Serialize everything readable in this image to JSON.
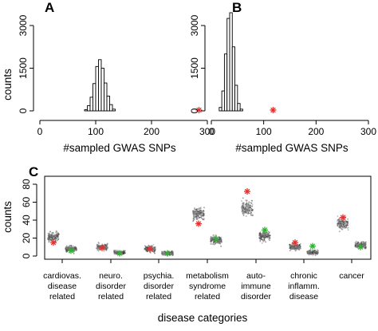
{
  "chart_data": [
    {
      "panel": "A",
      "type": "bar",
      "xlabel": "#sampled GWAS SNPs",
      "ylabel": "counts",
      "xlim": [
        0,
        300
      ],
      "ylim": [
        0,
        3000
      ],
      "x_ticks": [
        "0",
        "100",
        "200",
        "300"
      ],
      "y_ticks": [
        "0",
        "1500",
        "3000"
      ],
      "bin_width": 5,
      "bins_start": [
        80,
        85,
        90,
        95,
        100,
        105,
        110,
        115,
        120,
        125,
        130
      ],
      "values": [
        40,
        180,
        480,
        960,
        1560,
        1800,
        1500,
        980,
        520,
        220,
        60
      ],
      "observed_x": 285,
      "observed_color": "#e53030"
    },
    {
      "panel": "B",
      "type": "bar",
      "xlabel": "#sampled GWAS SNPs",
      "ylabel": "",
      "xlim": [
        0,
        300
      ],
      "ylim": [
        0,
        3000
      ],
      "x_ticks": [
        "0",
        "100",
        "200",
        "300"
      ],
      "y_ticks": [
        "0",
        "1500",
        "3000"
      ],
      "bin_width": 5,
      "bins_start": [
        15,
        20,
        25,
        30,
        35,
        40,
        45,
        50,
        55
      ],
      "values": [
        120,
        700,
        2000,
        3250,
        3450,
        2250,
        900,
        260,
        60
      ],
      "observed_x": 118,
      "observed_color": "#e53030"
    },
    {
      "panel": "C",
      "type": "scatter",
      "xlabel": "disease categories",
      "ylabel": "counts",
      "ylim": [
        0,
        80
      ],
      "y_ticks": [
        "0",
        "20",
        "40",
        "60",
        "80"
      ],
      "categories": [
        {
          "lines": [
            "cardiovas.",
            "disease",
            "related"
          ],
          "dists": [
            {
              "mean": 22,
              "sd": 4.5,
              "obs": 15,
              "obs_color": "#e53030"
            },
            {
              "mean": 8,
              "sd": 3,
              "obs": 6,
              "obs_color": "#30b030"
            }
          ]
        },
        {
          "lines": [
            "neuro.",
            "disorder",
            "related"
          ],
          "dists": [
            {
              "mean": 10,
              "sd": 3.2,
              "obs": 9,
              "obs_color": "#e53030"
            },
            {
              "mean": 4,
              "sd": 2,
              "obs": 3,
              "obs_color": "#30b030"
            }
          ]
        },
        {
          "lines": [
            "psychia.",
            "disorder",
            "related"
          ],
          "dists": [
            {
              "mean": 8,
              "sd": 3,
              "obs": 8,
              "obs_color": "#e53030"
            },
            {
              "mean": 3,
              "sd": 1.8,
              "obs": 3,
              "obs_color": "#30b030"
            }
          ]
        },
        {
          "lines": [
            "metabolism",
            "syndrome",
            "related"
          ],
          "dists": [
            {
              "mean": 47,
              "sd": 6.5,
              "obs": 36,
              "obs_color": "#e53030"
            },
            {
              "mean": 18,
              "sd": 4,
              "obs": 19,
              "obs_color": "#30b030"
            }
          ]
        },
        {
          "lines": [
            "auto-",
            "immune",
            "disorder"
          ],
          "dists": [
            {
              "mean": 53,
              "sd": 7,
              "obs": 72,
              "obs_color": "#e53030"
            },
            {
              "mean": 22,
              "sd": 4.5,
              "obs": 29,
              "obs_color": "#30b030"
            }
          ]
        },
        {
          "lines": [
            "chronic",
            "inflamm.",
            "disease"
          ],
          "dists": [
            {
              "mean": 10,
              "sd": 3.2,
              "obs": 15,
              "obs_color": "#e53030"
            },
            {
              "mean": 4,
              "sd": 2,
              "obs": 11,
              "obs_color": "#30b030"
            }
          ]
        },
        {
          "lines": [
            "cancer"
          ],
          "dists": [
            {
              "mean": 36,
              "sd": 5.5,
              "obs": 43,
              "obs_color": "#e53030"
            },
            {
              "mean": 12,
              "sd": 3.2,
              "obs": 10,
              "obs_color": "#30b030"
            }
          ]
        }
      ]
    }
  ],
  "panel_letters": [
    "A",
    "B",
    "C"
  ]
}
